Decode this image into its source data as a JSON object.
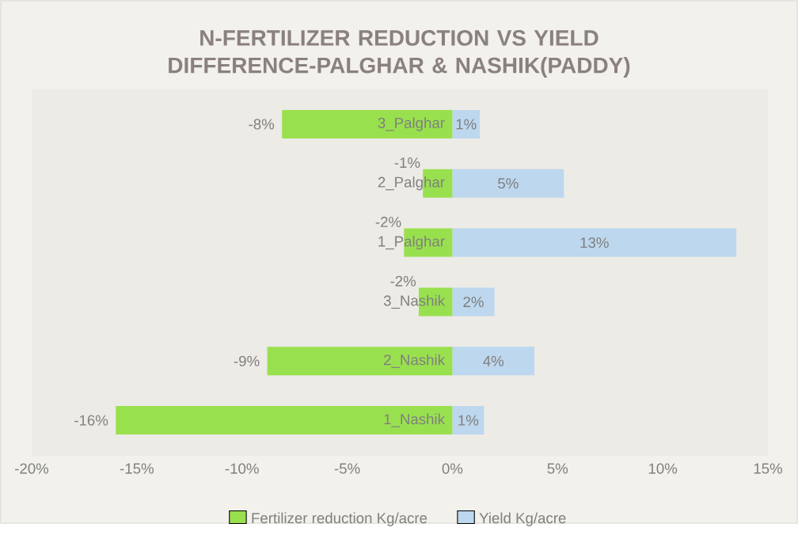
{
  "chart_data": {
    "type": "bar",
    "orientation": "horizontal",
    "stacked": true,
    "title": "N-FERTILIZER REDUCTION VS YIELD DIFFERENCE-PALGHAR & NASHIK(PADDY)",
    "categories": [
      "3_Palghar",
      "2_Palghar",
      "1_Palghar",
      "3_Nashik",
      "2_Nashik",
      "1_Nashik"
    ],
    "series": [
      {
        "name": "Fertilizer reduction Kg/acre",
        "color": "#99e04f",
        "values": [
          -8.1,
          -1.4,
          -2.3,
          -1.6,
          -8.8,
          -16.0
        ],
        "value_labels": [
          "-8%",
          "-1%",
          "-2%",
          "-2%",
          "-9%",
          "-16%"
        ]
      },
      {
        "name": "Yield Kg/acre",
        "color": "#bdd7ee",
        "values": [
          1.3,
          5.3,
          13.5,
          2.0,
          3.9,
          1.5
        ],
        "value_labels": [
          "1%",
          "5%",
          "13%",
          "2%",
          "4%",
          "1%"
        ]
      }
    ],
    "xlim": [
      -20,
      15
    ],
    "xticks": [
      {
        "value": -20,
        "label": "-20%"
      },
      {
        "value": -15,
        "label": "-15%"
      },
      {
        "value": -10,
        "label": "-10%"
      },
      {
        "value": -5,
        "label": "-5%"
      },
      {
        "value": 0,
        "label": "0%"
      },
      {
        "value": 5,
        "label": "5%"
      },
      {
        "value": 10,
        "label": "10%"
      },
      {
        "value": 15,
        "label": "15%"
      }
    ],
    "grid": false,
    "legend": "bottom"
  }
}
